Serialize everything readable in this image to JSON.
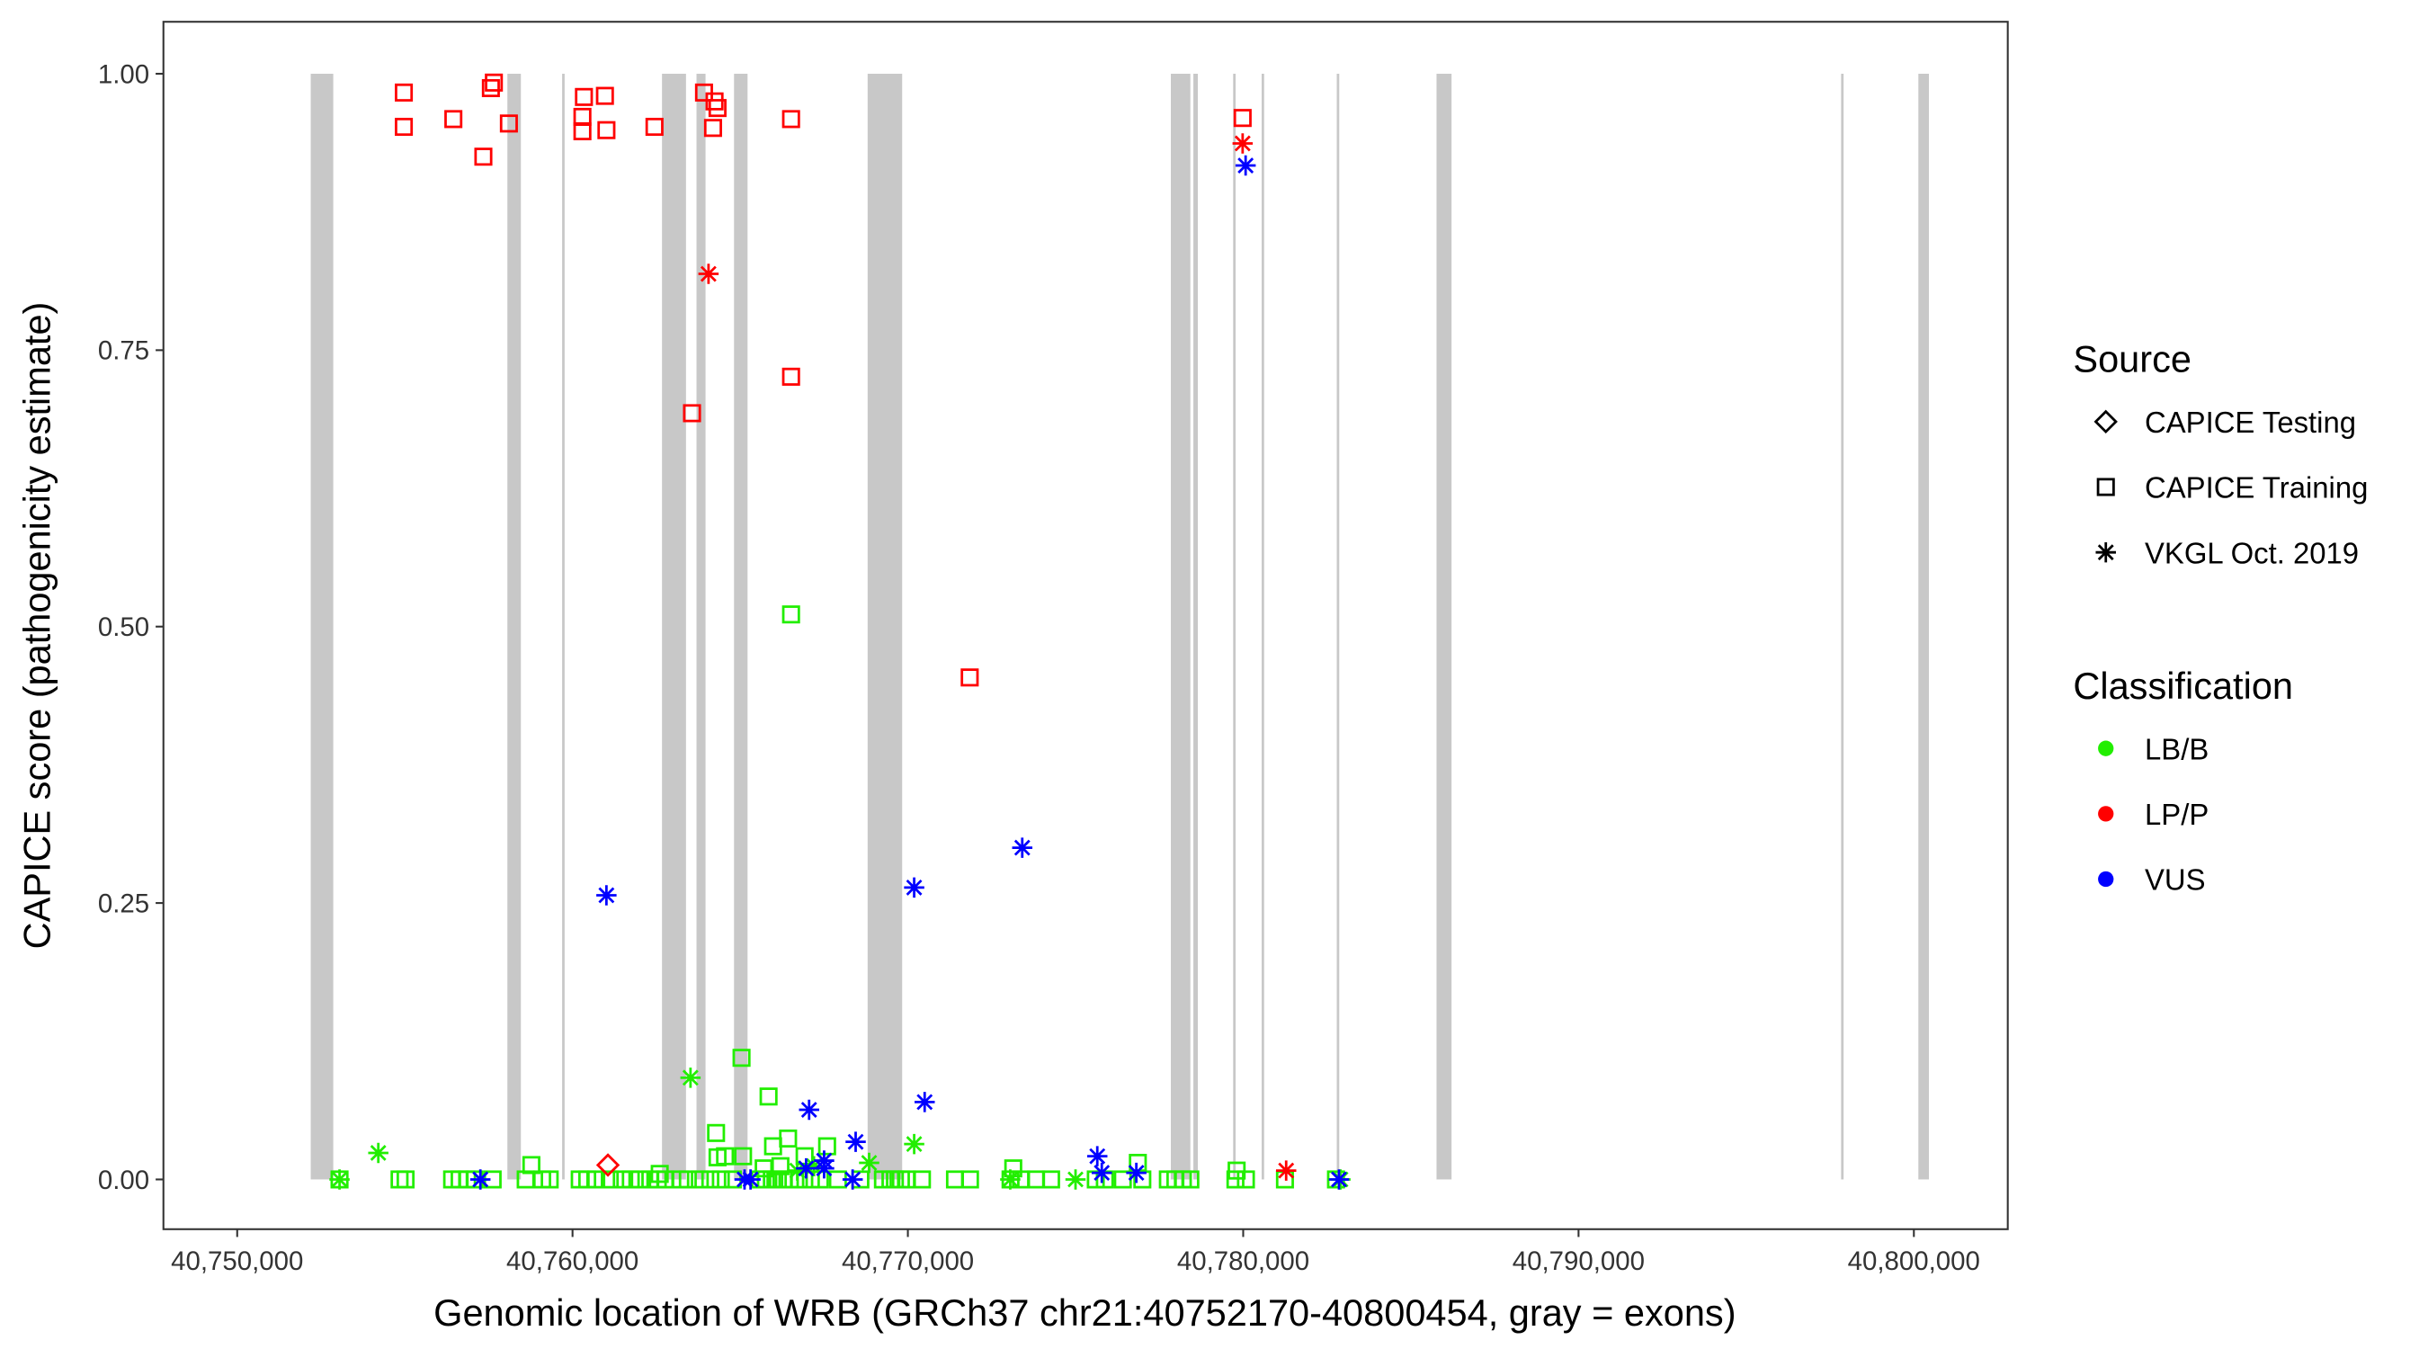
{
  "chart_data": {
    "type": "scatter",
    "xlabel": "Genomic location of WRB (GRCh37 chr21:40752170-40800454, gray = exons)",
    "ylabel": "CAPICE score (pathogenicity estimate)",
    "xlim": [
      40747800,
      40802800
    ],
    "ylim": [
      -0.045,
      1.047
    ],
    "xticks": [
      40750000,
      40760000,
      40770000,
      40780000,
      40790000,
      40800000
    ],
    "xtick_labels": [
      "40,750,000",
      "40,760,000",
      "40,770,000",
      "40,780,000",
      "40,790,000",
      "40,800,000"
    ],
    "yticks": [
      0,
      0.25,
      0.5,
      0.75,
      1.0
    ],
    "ytick_labels": [
      "0.00",
      "0.25",
      "0.50",
      "0.75",
      "1.00"
    ],
    "grid": false,
    "exons": [
      [
        40752193,
        40752865
      ],
      [
        40758057,
        40758460
      ],
      [
        40759690,
        40759740
      ],
      [
        40762668,
        40763384
      ],
      [
        40763697,
        40763966
      ],
      [
        40764816,
        40765219
      ],
      [
        40768800,
        40769830
      ],
      [
        40777842,
        40778424
      ],
      [
        40778514,
        40778648
      ],
      [
        40779700,
        40779750
      ],
      [
        40780550,
        40780600
      ],
      [
        40782790,
        40782840
      ],
      [
        40785765,
        40786213
      ],
      [
        40797830,
        40797880
      ],
      [
        40800134,
        40800448
      ]
    ],
    "exon_color": "#c8c8c8",
    "colors": {
      "LB/B": "#22ee00",
      "LP/P": "#ff0000",
      "VUS": "#0000ff"
    },
    "legend": {
      "placement": "right",
      "source_title": "Source",
      "source_items": [
        {
          "label": "CAPICE Testing",
          "shape": "diamond"
        },
        {
          "label": "CAPICE Training",
          "shape": "square"
        },
        {
          "label": "VKGL Oct. 2019",
          "shape": "asterisk"
        }
      ],
      "class_title": "Classification",
      "class_items": [
        "LB/B",
        "LP/P",
        "VUS"
      ]
    },
    "series": [
      {
        "name": "LP/P CAPICE Training",
        "class": "LP/P",
        "shape": "square",
        "points": [
          [
            40754969,
            0.983
          ],
          [
            40754969,
            0.952
          ],
          [
            40756446,
            0.959
          ],
          [
            40757341,
            0.925
          ],
          [
            40757565,
            0.987
          ],
          [
            40757654,
            0.992
          ],
          [
            40758102,
            0.955
          ],
          [
            40760340,
            0.979
          ],
          [
            40760295,
            0.961
          ],
          [
            40760295,
            0.948
          ],
          [
            40760966,
            0.98
          ],
          [
            40761011,
            0.949
          ],
          [
            40762444,
            0.952
          ],
          [
            40763921,
            0.983
          ],
          [
            40764190,
            0.951
          ],
          [
            40764235,
            0.975
          ],
          [
            40764324,
            0.969
          ],
          [
            40766517,
            0.959
          ],
          [
            40763563,
            0.693
          ],
          [
            40766517,
            0.726
          ],
          [
            40779983,
            0.96
          ],
          [
            40771844,
            0.454
          ]
        ]
      },
      {
        "name": "LP/P VKGL",
        "class": "LP/P",
        "shape": "asterisk",
        "points": [
          [
            40764055,
            0.819
          ],
          [
            40779983,
            0.937
          ],
          [
            40781281,
            0.008
          ]
        ]
      },
      {
        "name": "LP/P CAPICE Testing",
        "class": "LP/P",
        "shape": "diamond",
        "points": [
          [
            40761056,
            0.013
          ]
        ]
      },
      {
        "name": "VUS VKGL",
        "class": "VUS",
        "shape": "asterisk",
        "points": [
          [
            40757252,
            0
          ],
          [
            40761011,
            0.257
          ],
          [
            40770188,
            0.264
          ],
          [
            40773411,
            0.3
          ],
          [
            40780072,
            0.917
          ],
          [
            40767055,
            0.063
          ],
          [
            40770501,
            0.07
          ],
          [
            40768443,
            0.034
          ],
          [
            40767502,
            0.017
          ],
          [
            40767502,
            0.01
          ],
          [
            40765130,
            0
          ],
          [
            40765309,
            0
          ],
          [
            40768353,
            0
          ],
          [
            40775649,
            0.021
          ],
          [
            40775783,
            0.006
          ],
          [
            40776813,
            0.006
          ],
          [
            40782856,
            0
          ],
          [
            40766965,
            0.01
          ]
        ]
      },
      {
        "name": "LB/B CAPICE Training",
        "class": "LB/B",
        "shape": "square",
        "points": [
          [
            40766517,
            0.511
          ],
          [
            40765040,
            0.11
          ],
          [
            40765846,
            0.075
          ],
          [
            40764280,
            0.042
          ],
          [
            40766428,
            0.037
          ],
          [
            40765980,
            0.03
          ],
          [
            40767592,
            0.03
          ],
          [
            40764324,
            0.02
          ],
          [
            40764548,
            0.021
          ],
          [
            40765085,
            0.021
          ],
          [
            40766920,
            0.021
          ],
          [
            40758773,
            0.013
          ],
          [
            40776858,
            0.015
          ],
          [
            40773143,
            0.01
          ],
          [
            40779804,
            0.008
          ],
          [
            40765700,
            0.01
          ],
          [
            40766200,
            0.012
          ],
          [
            40762600,
            0.005
          ],
          [
            40753052,
            0
          ],
          [
            40754842,
            0
          ],
          [
            40755021,
            0
          ],
          [
            40756409,
            0
          ],
          [
            40756633,
            0
          ],
          [
            40756857,
            0
          ],
          [
            40757081,
            0
          ],
          [
            40757618,
            0
          ],
          [
            40758603,
            0
          ],
          [
            40759095,
            0
          ],
          [
            40759319,
            0
          ],
          [
            40760214,
            0
          ],
          [
            40760438,
            0
          ],
          [
            40760707,
            0
          ],
          [
            40761110,
            0
          ],
          [
            40761468,
            0
          ],
          [
            40761737,
            0
          ],
          [
            40762005,
            0
          ],
          [
            40762319,
            0
          ],
          [
            40762542,
            0
          ],
          [
            40762766,
            0
          ],
          [
            40763214,
            0
          ],
          [
            40763438,
            0
          ],
          [
            40763796,
            0
          ],
          [
            40764109,
            0
          ],
          [
            40764422,
            0
          ],
          [
            40764780,
            0
          ],
          [
            40765586,
            0
          ],
          [
            40765765,
            0
          ],
          [
            40765944,
            0
          ],
          [
            40766123,
            0
          ],
          [
            40766302,
            0
          ],
          [
            40766481,
            0
          ],
          [
            40766750,
            0
          ],
          [
            40767108,
            0
          ],
          [
            40767376,
            0
          ],
          [
            40767913,
            0
          ],
          [
            40768584,
            0
          ],
          [
            40769256,
            0
          ],
          [
            40769480,
            0
          ],
          [
            40769614,
            0
          ],
          [
            40769793,
            0
          ],
          [
            40769972,
            0
          ],
          [
            40770420,
            0
          ],
          [
            40771405,
            0
          ],
          [
            40771853,
            0
          ],
          [
            40773062,
            0
          ],
          [
            40773375,
            0
          ],
          [
            40773823,
            0
          ],
          [
            40774271,
            0
          ],
          [
            40775604,
            0
          ],
          [
            40775873,
            0
          ],
          [
            40776410,
            0
          ],
          [
            40776992,
            0
          ],
          [
            40777753,
            0
          ],
          [
            40777977,
            0
          ],
          [
            40778201,
            0
          ],
          [
            40778424,
            0
          ],
          [
            40779768,
            0
          ],
          [
            40780081,
            0
          ],
          [
            40781245,
            0
          ],
          [
            40782767,
            0
          ]
        ]
      },
      {
        "name": "LB/B VKGL",
        "class": "LB/B",
        "shape": "asterisk",
        "points": [
          [
            40754208,
            0.024
          ],
          [
            40763518,
            0.092
          ],
          [
            40770188,
            0.032
          ],
          [
            40768845,
            0.015
          ],
          [
            40753052,
            0
          ],
          [
            40775000,
            0
          ],
          [
            40773053,
            0
          ],
          [
            40782901,
            0
          ],
          [
            40766700,
            0.008
          ],
          [
            40767200,
            0.012
          ]
        ]
      }
    ]
  }
}
